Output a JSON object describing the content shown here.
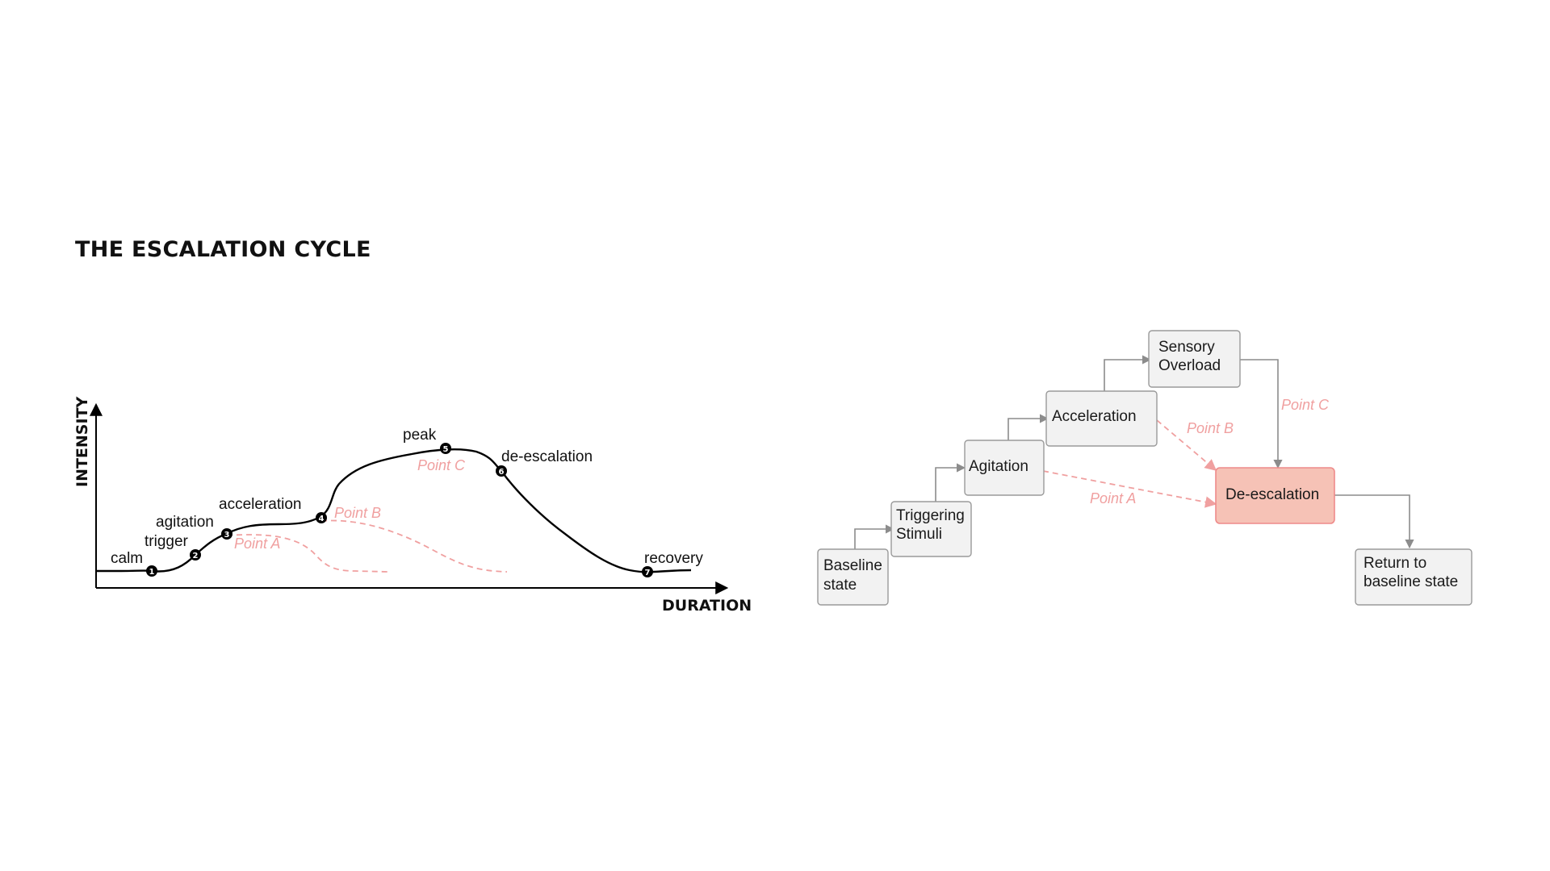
{
  "title": "THE ESCALATION CYCLE",
  "left_chart": {
    "y_axis_label": "INTENSITY",
    "x_axis_label": "DURATION",
    "stages": [
      {
        "number": "1",
        "label": "calm"
      },
      {
        "number": "2",
        "label": "trigger"
      },
      {
        "number": "3",
        "label": "agitation"
      },
      {
        "number": "4",
        "label": "acceleration"
      },
      {
        "number": "5",
        "label": "peak"
      },
      {
        "number": "6",
        "label": "de-escalation"
      },
      {
        "number": "7",
        "label": "recovery"
      }
    ],
    "intervention_points": [
      "Point A",
      "Point B",
      "Point C"
    ],
    "colors": {
      "curve": "#000000",
      "intervention": "#f0a0a0"
    }
  },
  "flowchart": {
    "nodes": {
      "baseline": {
        "line1": "Baseline",
        "line2": "state"
      },
      "triggering": {
        "line1": "Triggering",
        "line2": "Stimuli"
      },
      "agitation": {
        "line1": "Agitation"
      },
      "acceleration": {
        "line1": "Acceleration"
      },
      "sensory": {
        "line1": "Sensory",
        "line2": "Overload"
      },
      "deescalation": {
        "line1": "De-escalation"
      },
      "return": {
        "line1": "Return to",
        "line2": "baseline state"
      }
    },
    "edge_labels": {
      "point_a": "Point A",
      "point_b": "Point B",
      "point_c": "Point C"
    },
    "colors": {
      "node_fill": "#f2f2f2",
      "highlight_fill": "#f6c2b6",
      "highlight_stroke": "#ee8a8a",
      "connector": "#8c8c8c"
    }
  }
}
